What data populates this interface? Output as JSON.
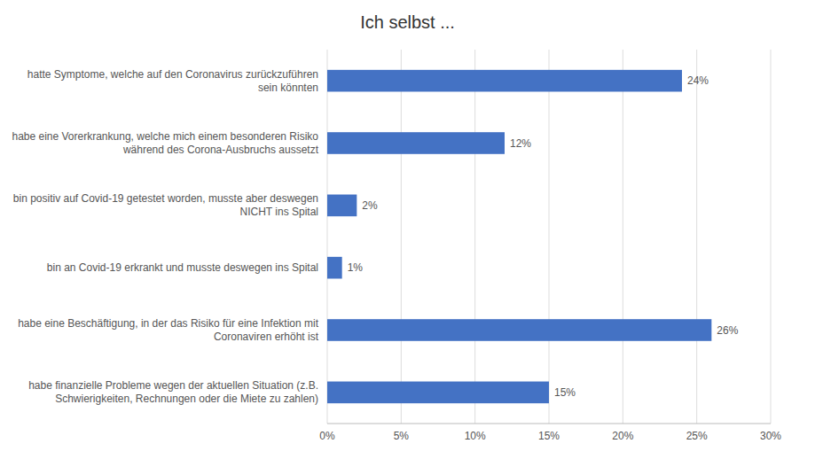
{
  "chart_data": {
    "type": "bar",
    "orientation": "horizontal",
    "title": "Ich selbst ...",
    "categories": [
      "hatte Symptome, welche auf den Coronavirus zurückzuführen\nsein könnten",
      "habe eine Vorerkrankung, welche mich einem besonderen Risiko\nwährend des Corona-Ausbruchs aussetzt",
      "bin positiv auf Covid-19 getestet worden, musste aber deswegen\nNICHT ins Spital",
      "bin an Covid-19 erkrankt und musste deswegen ins Spital",
      "habe eine Beschäftigung, in der das Risiko für eine Infektion mit\nCoronaviren erhöht ist",
      "habe finanzielle Probleme wegen der aktuellen Situation (z.B.\nSchwierigkeiten, Rechnungen oder die Miete zu zahlen)"
    ],
    "values": [
      24,
      12,
      2,
      1,
      26,
      15
    ],
    "value_labels": [
      "24%",
      "12%",
      "2%",
      "1%",
      "26%",
      "15%"
    ],
    "data_labels": true,
    "color": "#4472C4",
    "xlim": [
      0,
      30
    ],
    "xticks": [
      {
        "value": 0,
        "label": "0%"
      },
      {
        "value": 5,
        "label": "5%"
      },
      {
        "value": 10,
        "label": "10%"
      },
      {
        "value": 15,
        "label": "15%"
      },
      {
        "value": 20,
        "label": "20%"
      },
      {
        "value": 25,
        "label": "25%"
      },
      {
        "value": 30,
        "label": "30%"
      }
    ],
    "grid": true
  }
}
